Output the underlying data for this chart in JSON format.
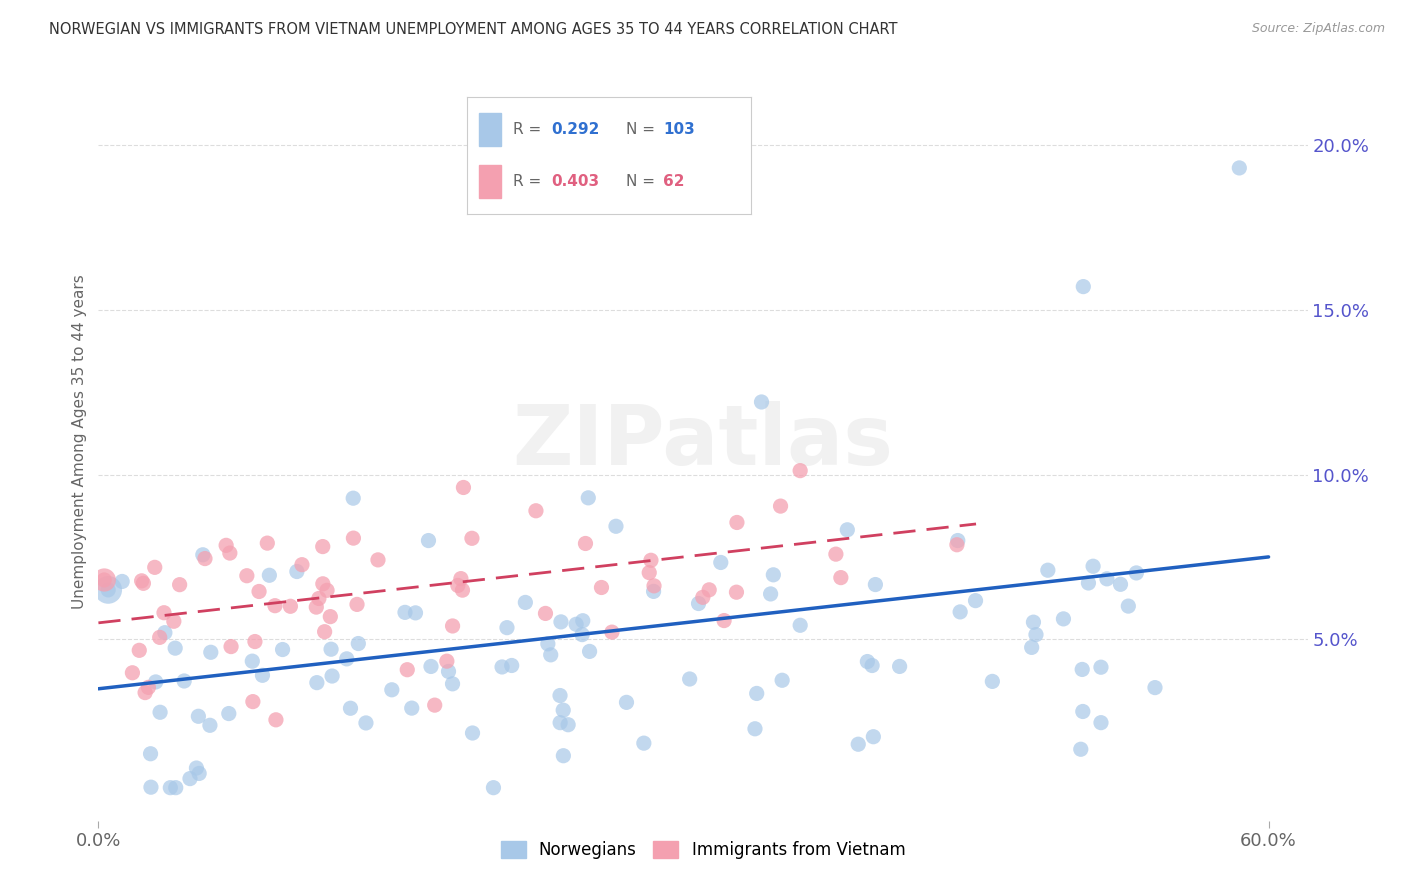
{
  "title": "NORWEGIAN VS IMMIGRANTS FROM VIETNAM UNEMPLOYMENT AMONG AGES 35 TO 44 YEARS CORRELATION CHART",
  "source": "Source: ZipAtlas.com",
  "ylabel": "Unemployment Among Ages 35 to 44 years",
  "y_tick_labels": [
    "5.0%",
    "10.0%",
    "15.0%",
    "20.0%"
  ],
  "y_tick_values": [
    0.05,
    0.1,
    0.15,
    0.2
  ],
  "watermark": "ZIPatlas",
  "r_norwegian": 0.292,
  "n_norwegian": 103,
  "r_vietnam": 0.403,
  "n_vietnam": 62,
  "norwegian_color": "#a8c8e8",
  "vietnam_color": "#f4a0b0",
  "trend_norwegian_color": "#2060c0",
  "trend_vietnam_color": "#d04060",
  "xlim": [
    0.0,
    0.62
  ],
  "ylim": [
    -0.005,
    0.225
  ],
  "background_color": "#ffffff",
  "grid_color": "#dddddd",
  "nor_legend_color": "#3070d0",
  "viet_legend_color": "#e06080"
}
